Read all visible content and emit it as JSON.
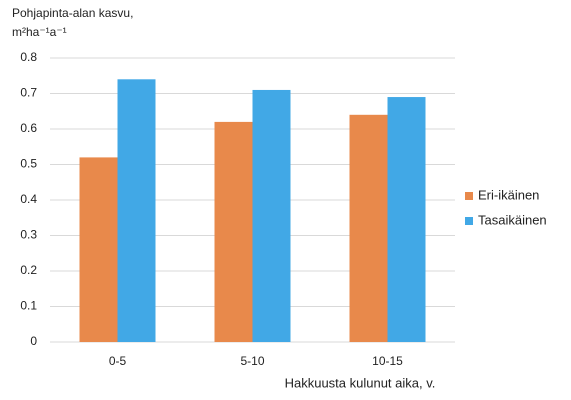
{
  "chart_data": {
    "type": "bar",
    "y_label": [
      "Pohjapinta-alan kasvu,",
      "m²ha⁻¹a⁻¹"
    ],
    "x_label": "Hakkuusta kulunut aika, v.",
    "categories": [
      "0-5",
      "5-10",
      "10-15"
    ],
    "series": [
      {
        "name": "Eri-ikäinen",
        "color": "#e8894b",
        "values": [
          0.52,
          0.62,
          0.64
        ]
      },
      {
        "name": "Tasaikäinen",
        "color": "#41a8e6",
        "values": [
          0.74,
          0.71,
          0.69
        ]
      }
    ],
    "ylim": [
      0,
      0.8
    ],
    "yticks": [
      0,
      0.1,
      0.2,
      0.3,
      0.4,
      0.5,
      0.6,
      0.7,
      0.8
    ],
    "grid": true,
    "legend": "right"
  }
}
